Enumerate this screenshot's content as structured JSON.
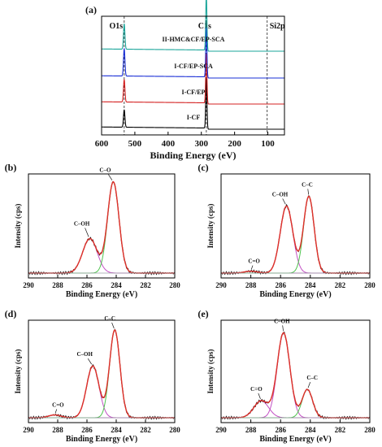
{
  "chart_data": [
    {
      "panel": "(a)",
      "type": "line",
      "xlabel": "Binding Energy (eV)",
      "ylabel": "",
      "xlim": [
        600,
        50
      ],
      "xticks": [
        600,
        500,
        400,
        300,
        200,
        100
      ],
      "reference_lines": [
        {
          "x": 532,
          "label": "O1s"
        },
        {
          "x": 285,
          "label": "C1s"
        },
        {
          "x": 102,
          "label": "Si2p"
        }
      ],
      "series": [
        {
          "name": "I-CF",
          "color": "#000000",
          "peaks": [
            {
              "x": 532,
              "h": 0.35
            },
            {
              "x": 285,
              "h": 1.0
            }
          ]
        },
        {
          "name": "I-CF/EP",
          "color": "#d42020",
          "peaks": [
            {
              "x": 532,
              "h": 0.45
            },
            {
              "x": 285,
              "h": 1.0
            }
          ]
        },
        {
          "name": "I-CF/EP-SCA",
          "color": "#1a2fd6",
          "peaks": [
            {
              "x": 532,
              "h": 0.55
            },
            {
              "x": 285,
              "h": 1.0
            }
          ]
        },
        {
          "name": "II-HMC&CF/EP-SCA",
          "color": "#1aa59a",
          "peaks": [
            {
              "x": 532,
              "h": 0.45
            },
            {
              "x": 285,
              "h": 1.0
            }
          ]
        }
      ]
    },
    {
      "panel": "(b)",
      "type": "line",
      "xlabel": "Binding Energy (eV)",
      "ylabel": "Intensity (cps)",
      "xlim": [
        290,
        280
      ],
      "xticks": [
        290,
        288,
        286,
        284,
        282,
        280
      ],
      "peaks": [
        {
          "label": "C–OH",
          "center": 285.8,
          "amp": 0.36,
          "width": 0.7
        },
        {
          "label": "C–O",
          "center": 284.2,
          "amp": 0.95,
          "width": 0.55
        }
      ]
    },
    {
      "panel": "(c)",
      "type": "line",
      "xlabel": "Binding Energy (eV)",
      "ylabel": "Intensity (cps)",
      "xlim": [
        290,
        280
      ],
      "xticks": [
        290,
        288,
        286,
        284,
        282,
        280
      ],
      "peaks": [
        {
          "label": "C=O",
          "center": 288.0,
          "amp": 0.02,
          "width": 0.6
        },
        {
          "label": "C–OH",
          "center": 285.6,
          "amp": 0.7,
          "width": 0.6
        },
        {
          "label": "C–C",
          "center": 284.1,
          "amp": 0.8,
          "width": 0.5
        }
      ]
    },
    {
      "panel": "(d)",
      "type": "line",
      "xlabel": "Binding Energy (eV)",
      "ylabel": "Intensity (cps)",
      "xlim": [
        290,
        280
      ],
      "xticks": [
        290,
        288,
        286,
        284,
        282,
        280
      ],
      "peaks": [
        {
          "label": "C=O",
          "center": 288.2,
          "amp": 0.03,
          "width": 0.6
        },
        {
          "label": "C–OH",
          "center": 285.6,
          "amp": 0.55,
          "width": 0.6
        },
        {
          "label": "C–C",
          "center": 284.1,
          "amp": 0.93,
          "width": 0.5
        }
      ]
    },
    {
      "panel": "(e)",
      "type": "line",
      "xlabel": "Binding Energy (eV)",
      "ylabel": "Intensity (cps)",
      "xlim": [
        290,
        280
      ],
      "xticks": [
        290,
        288,
        286,
        284,
        282,
        280
      ],
      "peaks": [
        {
          "label": "C=O",
          "center": 287.3,
          "amp": 0.18,
          "width": 0.7
        },
        {
          "label": "C–OH",
          "center": 285.8,
          "amp": 0.9,
          "width": 0.6
        },
        {
          "label": "C–C",
          "center": 284.2,
          "amp": 0.3,
          "width": 0.5
        }
      ]
    }
  ]
}
